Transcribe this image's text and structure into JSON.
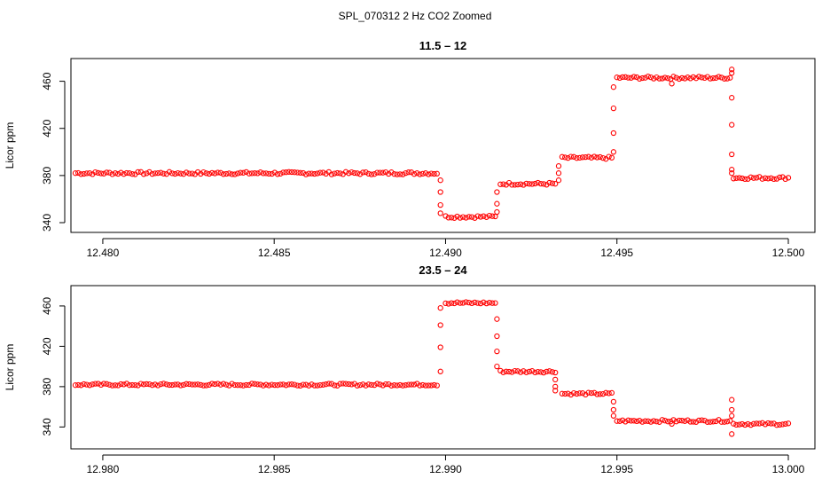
{
  "figure": {
    "suptitle": "SPL_070312  2 Hz CO2 Zoomed"
  },
  "chart_data": [
    {
      "type": "scatter",
      "title": "11.5 – 12",
      "xlabel": "",
      "ylabel": "Licor ppm",
      "xlim": [
        12.4792,
        12.5
      ],
      "ylim": [
        340,
        474
      ],
      "xticks": [
        "12.480",
        "12.485",
        "12.490",
        "12.495",
        "12.500"
      ],
      "xtick_values": [
        12.48,
        12.485,
        12.49,
        12.495,
        12.5
      ],
      "yticks": [
        "340",
        "380",
        "420",
        "460"
      ],
      "ytick_values": [
        340,
        380,
        420,
        460
      ],
      "grid": false,
      "marker": "open-circle",
      "color": "#ff0000",
      "segments": [
        {
          "x": [
            12.4792,
            12.48975
          ],
          "y": 382
        },
        {
          "x": [
            12.49,
            12.49145
          ],
          "y": 345
        },
        {
          "x": [
            12.4916,
            12.4932
          ],
          "y": 373
        },
        {
          "x": [
            12.4934,
            12.49485
          ],
          "y": 395
        },
        {
          "x": [
            12.495,
            12.4983
          ],
          "y": 463
        },
        {
          "x": [
            12.4984,
            12.5
          ],
          "y": 378
        }
      ],
      "transitions": [
        {
          "x": 12.48985,
          "y": [
            376,
            366,
            355,
            348
          ]
        },
        {
          "x": 12.4915,
          "y": [
            349,
            356,
            366
          ]
        },
        {
          "x": 12.4933,
          "y": [
            376,
            382,
            388
          ]
        },
        {
          "x": 12.4949,
          "y": [
            400,
            416,
            437,
            455
          ]
        },
        {
          "x": 12.49835,
          "y": [
            470,
            467,
            446,
            423,
            398,
            385,
            382
          ]
        }
      ],
      "outliers": [
        {
          "x": 12.4966,
          "y": 458
        }
      ]
    },
    {
      "type": "scatter",
      "title": "23.5 – 24",
      "xlabel": "",
      "ylabel": "Licor ppm",
      "xlim": [
        12.9792,
        13.0
      ],
      "ylim": [
        328,
        474
      ],
      "xticks": [
        "12.980",
        "12.985",
        "12.990",
        "12.995",
        "13.000"
      ],
      "xtick_values": [
        12.98,
        12.985,
        12.99,
        12.995,
        13.0
      ],
      "yticks": [
        "340",
        "380",
        "420",
        "460"
      ],
      "ytick_values": [
        340,
        380,
        420,
        460
      ],
      "grid": false,
      "marker": "open-circle",
      "color": "#ff0000",
      "segments": [
        {
          "x": [
            12.9792,
            12.98975
          ],
          "y": 382
        },
        {
          "x": [
            12.99,
            12.99145
          ],
          "y": 463
        },
        {
          "x": [
            12.9916,
            12.9932
          ],
          "y": 395
        },
        {
          "x": [
            12.9934,
            12.99485
          ],
          "y": 373
        },
        {
          "x": [
            12.995,
            12.9983
          ],
          "y": 346
        },
        {
          "x": [
            12.9984,
            13.0
          ],
          "y": 343
        }
      ],
      "transitions": [
        {
          "x": 12.98985,
          "y": [
            395,
            419,
            441,
            458
          ]
        },
        {
          "x": 12.9915,
          "y": [
            447,
            430,
            415,
            400
          ]
        },
        {
          "x": 12.9932,
          "y": [
            387,
            380,
            376
          ]
        },
        {
          "x": 12.9949,
          "y": [
            365,
            357,
            351
          ]
        },
        {
          "x": 12.99835,
          "y": [
            367,
            357,
            351,
            333
          ]
        }
      ],
      "outliers": [
        {
          "x": 12.9966,
          "y": 343
        }
      ]
    }
  ]
}
